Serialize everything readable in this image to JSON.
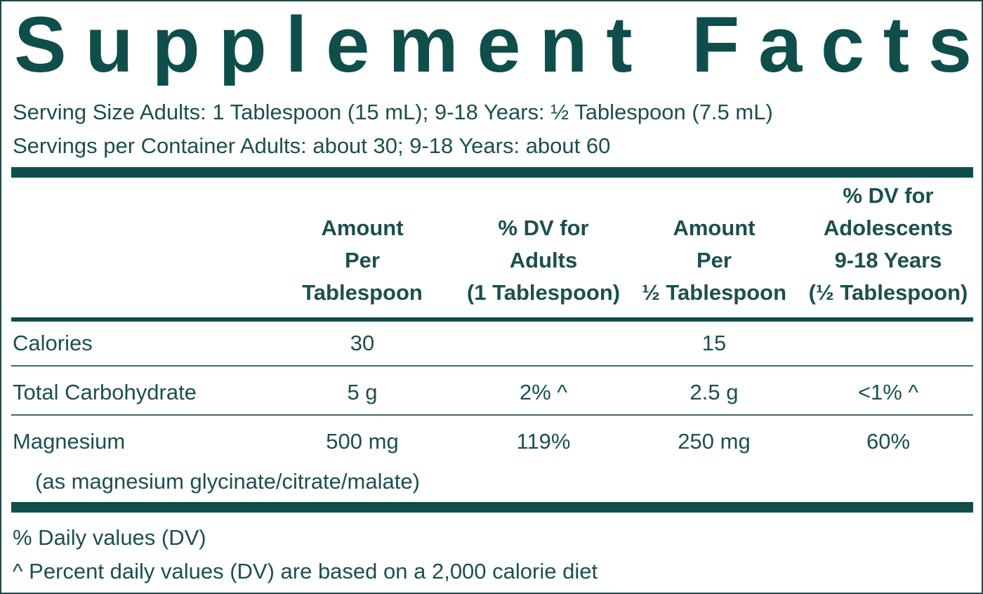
{
  "title": "Supplement Facts",
  "serving": [
    "Serving Size Adults: 1 Tablespoon (15 mL); 9-18 Years: ½ Tablespoon (7.5 mL)",
    "Servings per Container Adults: about 30; 9-18 Years: about 60"
  ],
  "table": {
    "headers": [
      [
        "Amount",
        "Per",
        "Tablespoon"
      ],
      [
        "% DV for",
        "Adults",
        "(1 Tablespoon)"
      ],
      [
        "Amount",
        "Per",
        "½ Tablespoon"
      ],
      [
        "% DV for",
        "Adolescents",
        "9-18 Years",
        "(½ Tablespoon)"
      ]
    ],
    "rows": [
      {
        "label": "Calories",
        "cells": [
          "30",
          null,
          "15",
          null
        ]
      },
      {
        "label": "Total Carbohydrate",
        "cells": [
          "5 g",
          "2% ^",
          "2.5 g",
          "<1% ^"
        ]
      },
      {
        "label": "Magnesium",
        "sublabel": "(as magnesium glycinate/citrate/malate)",
        "cells": [
          "500 mg",
          "119%",
          "250 mg",
          "60%"
        ]
      }
    ]
  },
  "footnotes": [
    "% Daily values (DV)",
    "^  Percent daily values (DV) are based on a 2,000 calorie diet"
  ]
}
